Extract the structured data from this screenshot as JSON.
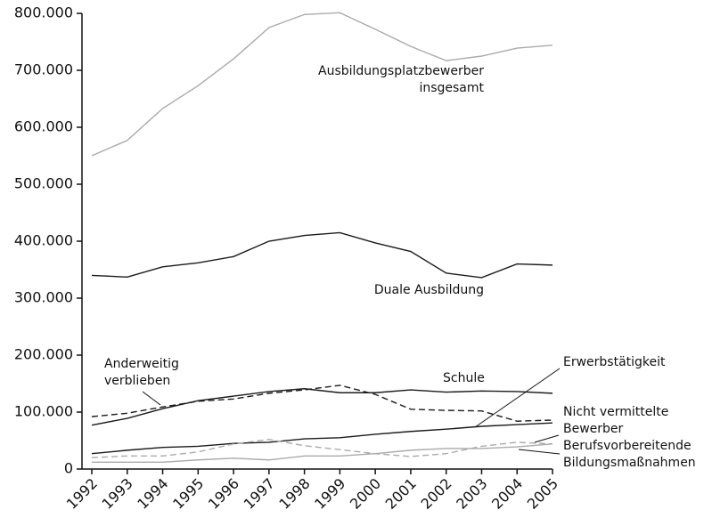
{
  "chart_data": {
    "type": "line",
    "x": [
      1992,
      1993,
      1994,
      1995,
      1996,
      1997,
      1998,
      1999,
      2000,
      2001,
      2002,
      2003,
      2004,
      2005
    ],
    "series": [
      {
        "name": "Ausbildungsplatzbewerber\ninsgesamt",
        "color": "#aaaaaa",
        "dashed": false,
        "values": [
          550000,
          577000,
          633000,
          673000,
          720000,
          775000,
          798000,
          801000,
          772000,
          742000,
          717000,
          725000,
          739000,
          744000
        ]
      },
      {
        "name": "Duale Ausbildung",
        "color": "#1a1a1a",
        "dashed": false,
        "values": [
          340000,
          337000,
          355000,
          362000,
          373000,
          400000,
          410000,
          415000,
          397000,
          382000,
          344000,
          336000,
          360000,
          358000
        ]
      },
      {
        "name": "Schule",
        "color": "#1a1a1a",
        "dashed": false,
        "values": [
          77000,
          89000,
          106000,
          120000,
          128000,
          136000,
          141000,
          134000,
          134000,
          139000,
          135000,
          137000,
          136000,
          133000
        ]
      },
      {
        "name": "Anderweitig\nverblieben",
        "color": "#1a1a1a",
        "dashed": true,
        "values": [
          92000,
          98000,
          109000,
          119000,
          123000,
          133000,
          139000,
          147000,
          131000,
          105000,
          103000,
          102000,
          84000,
          86000
        ]
      },
      {
        "name": "Erwerbstätigkeit",
        "color": "#1a1a1a",
        "dashed": false,
        "values": [
          27000,
          33000,
          38000,
          40000,
          45000,
          47000,
          53000,
          55000,
          61000,
          66000,
          70000,
          75000,
          78000,
          81000
        ]
      },
      {
        "name": "Nicht vermittelte\nBewerber",
        "color": "#aaaaaa",
        "dashed": true,
        "values": [
          20000,
          23000,
          23000,
          30000,
          44000,
          52000,
          41000,
          34000,
          27000,
          22000,
          27000,
          40000,
          47000,
          44000
        ]
      },
      {
        "name": "Berufsvorbereitende\nBildungsmaßnahmen",
        "color": "#aaaaaa",
        "dashed": false,
        "values": [
          12000,
          12000,
          12000,
          16000,
          19000,
          16000,
          23000,
          23000,
          27000,
          33000,
          36000,
          36000,
          39000,
          44000
        ]
      }
    ],
    "xlim": [
      1992,
      2005
    ],
    "xticks": [
      1992,
      1993,
      1994,
      1995,
      1996,
      1997,
      1998,
      1999,
      2000,
      2001,
      2002,
      2003,
      2004,
      2005
    ],
    "ylim": [
      0,
      800000
    ],
    "yticks": [
      0,
      {
        "value": 100000,
        "label": "100.000"
      },
      {
        "value": 200000,
        "label": "200.000"
      },
      {
        "value": 300000,
        "label": "300.000"
      },
      {
        "value": 400000,
        "label": "400.000"
      },
      {
        "value": 500000,
        "label": "500.000"
      },
      {
        "value": 600000,
        "label": "600.000"
      },
      {
        "value": 700000,
        "label": "700.000"
      },
      {
        "value": 800000,
        "label": "800.000"
      }
    ],
    "grid": false
  }
}
